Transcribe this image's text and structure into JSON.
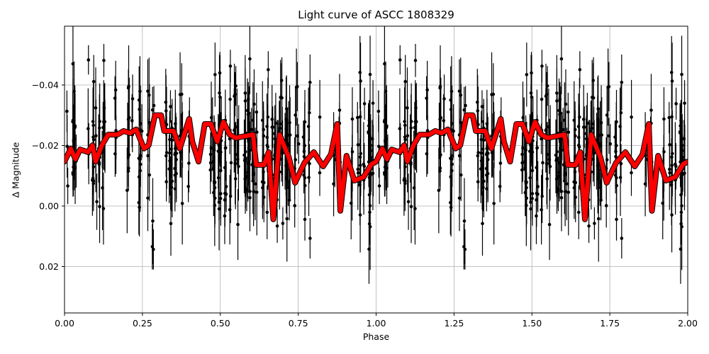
{
  "chart_data": {
    "type": "scatter",
    "title": "Light curve of ASCC 1808329",
    "xlabel": "Phase",
    "ylabel": "Δ Magnitude",
    "xlim": [
      0.0,
      2.0
    ],
    "ylim": [
      0.035,
      -0.059
    ],
    "y_inverted": true,
    "grid": true,
    "xticks": [
      "0.00",
      "0.25",
      "0.50",
      "0.75",
      "1.00",
      "1.25",
      "1.50",
      "1.75",
      "2.00"
    ],
    "xtick_values": [
      0.0,
      0.25,
      0.5,
      0.75,
      1.0,
      1.25,
      1.5,
      1.75,
      2.0
    ],
    "yticks": [
      "−0.04",
      "−0.02",
      "0.00",
      "0.02"
    ],
    "ytick_values": [
      -0.04,
      -0.02,
      0.0,
      0.02
    ],
    "series": [
      {
        "name": "observations",
        "style": "black points with vertical error bars",
        "color": "#000000",
        "n_points_per_phase_cycle": 420,
        "mag_mean": -0.018,
        "mag_scatter": 0.016,
        "typical_error": 0.008,
        "repeated_over_two_phases": true
      },
      {
        "name": "binned curve",
        "style": "thick red line with dark edge",
        "color": "#ff0000",
        "x": [
          0.0,
          0.02,
          0.035,
          0.05,
          0.075,
          0.09,
          0.1,
          0.12,
          0.14,
          0.17,
          0.19,
          0.21,
          0.23,
          0.255,
          0.27,
          0.29,
          0.31,
          0.32,
          0.35,
          0.37,
          0.4,
          0.41,
          0.43,
          0.45,
          0.47,
          0.49,
          0.51,
          0.53,
          0.55,
          0.58,
          0.605,
          0.615,
          0.64,
          0.655,
          0.67,
          0.69,
          0.72,
          0.74,
          0.77,
          0.8,
          0.83,
          0.855,
          0.875,
          0.885,
          0.905,
          0.93,
          0.96,
          0.985,
          1.0
        ],
        "values": [
          -0.0147,
          -0.019,
          -0.0155,
          -0.0187,
          -0.0178,
          -0.0201,
          -0.0147,
          -0.0201,
          -0.0236,
          -0.0236,
          -0.0248,
          -0.0241,
          -0.0253,
          -0.019,
          -0.0201,
          -0.03,
          -0.03,
          -0.0248,
          -0.0248,
          -0.019,
          -0.0288,
          -0.0213,
          -0.0147,
          -0.0271,
          -0.0271,
          -0.0213,
          -0.0278,
          -0.0236,
          -0.0225,
          -0.0231,
          -0.0236,
          -0.0136,
          -0.0136,
          -0.0178,
          0.0044,
          -0.0236,
          -0.0161,
          -0.0077,
          -0.0143,
          -0.0178,
          -0.0131,
          -0.0171,
          -0.0271,
          0.0016,
          -0.0166,
          -0.0084,
          -0.0096,
          -0.0138,
          -0.0147
        ],
        "repeated_over_two_phases": true
      }
    ]
  },
  "figure": {
    "title": "Light curve of ASCC 1808329",
    "xlabel": "Phase",
    "ylabel": "Δ Magnitude"
  }
}
